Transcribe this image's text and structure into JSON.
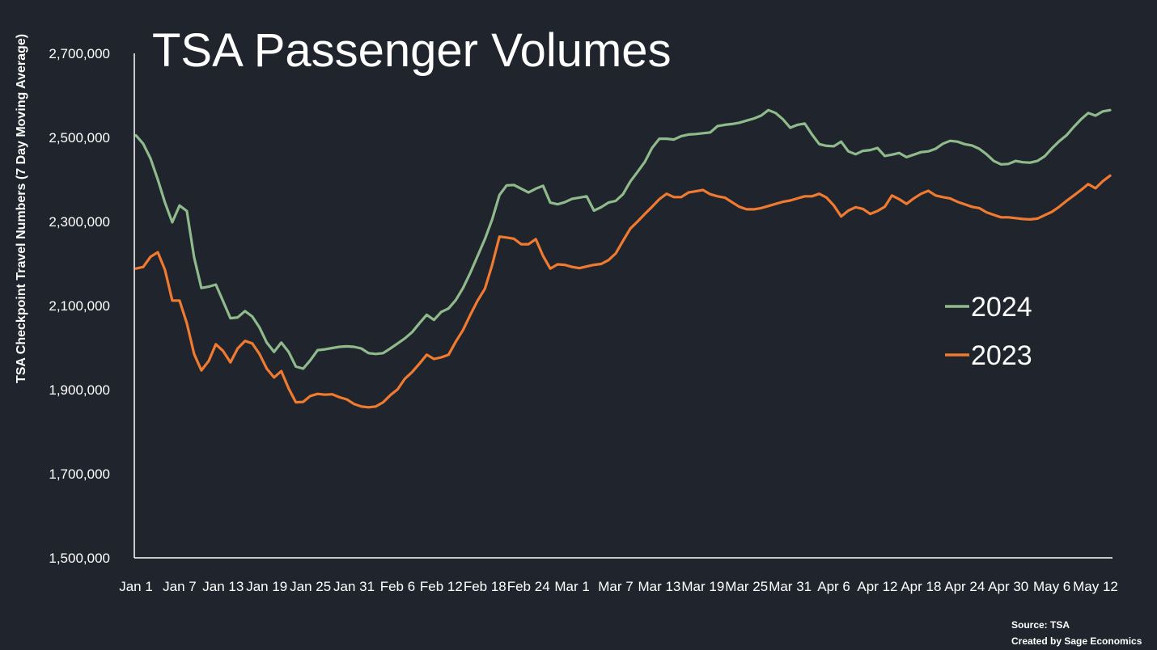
{
  "colors": {
    "background": "#20242c",
    "axis": "#ffffff",
    "text": "#ffffff"
  },
  "chart_data": {
    "type": "line",
    "title": "TSA Passenger Volumes",
    "xlabel": "",
    "ylabel": "TSA Checkpoint Travel Numbers (7 Day Moving Average)",
    "ylim": [
      1500000,
      2700000
    ],
    "yticks": [
      "1,500,000",
      "1,700,000",
      "1,900,000",
      "2,100,000",
      "2,300,000",
      "2,500,000",
      "2,700,000"
    ],
    "xticks": [
      "Jan 1",
      "Jan 7",
      "Jan 13",
      "Jan 19",
      "Jan 25",
      "Jan 31",
      "Feb 6",
      "Feb 12",
      "Feb 18",
      "Feb 24",
      "Mar 1",
      "Mar 7",
      "Mar 13",
      "Mar 19",
      "Mar 25",
      "Mar 31",
      "Apr 6",
      "Apr 12",
      "Apr 18",
      "Apr 24",
      "Apr 30",
      "May 6",
      "May 12"
    ],
    "grid": false,
    "legend_position": "right",
    "series": [
      {
        "name": "2024",
        "color": "#8fba8c",
        "values": [
          2505000,
          2485000,
          2450000,
          2400000,
          2345000,
          2298000,
          2338000,
          2325000,
          2215000,
          2142000,
          2145000,
          2150000,
          2110000,
          2070000,
          2072000,
          2087000,
          2074000,
          2048000,
          2012000,
          1990000,
          2012000,
          1990000,
          1955000,
          1950000,
          1970000,
          1994000,
          1996000,
          1999000,
          2002000,
          2003000,
          2002000,
          1998000,
          1987000,
          1985000,
          1987000,
          1998000,
          2010000,
          2022000,
          2037000,
          2058000,
          2078000,
          2066000,
          2085000,
          2093000,
          2113000,
          2142000,
          2178000,
          2218000,
          2258000,
          2305000,
          2363000,
          2386000,
          2387000,
          2378000,
          2369000,
          2378000,
          2385000,
          2345000,
          2341000,
          2346000,
          2354000,
          2357000,
          2360000,
          2326000,
          2334000,
          2345000,
          2349000,
          2365000,
          2395000,
          2418000,
          2442000,
          2475000,
          2497000,
          2497000,
          2495000,
          2503000,
          2507000,
          2508000,
          2510000,
          2512000,
          2527000,
          2530000,
          2532000,
          2535000,
          2540000,
          2545000,
          2552000,
          2565000,
          2558000,
          2543000,
          2523000,
          2530000,
          2533000,
          2507000,
          2484000,
          2480000,
          2479000,
          2490000,
          2467000,
          2460000,
          2468000,
          2470000,
          2475000,
          2456000,
          2459000,
          2463000,
          2453000,
          2459000,
          2465000,
          2467000,
          2473000,
          2485000,
          2492000,
          2490000,
          2484000,
          2481000,
          2473000,
          2460000,
          2444000,
          2436000,
          2437000,
          2444000,
          2441000,
          2440000,
          2444000,
          2455000,
          2474000,
          2491000,
          2505000,
          2525000,
          2543000,
          2558000,
          2552000,
          2562000,
          2565000
        ]
      },
      {
        "name": "2023",
        "color": "#f07a30",
        "values": [
          2188000,
          2192000,
          2216000,
          2227000,
          2185000,
          2112000,
          2112000,
          2058000,
          1985000,
          1946000,
          1968000,
          2008000,
          1992000,
          1965000,
          1998000,
          2016000,
          2010000,
          1985000,
          1950000,
          1929000,
          1944000,
          1903000,
          1870000,
          1871000,
          1885000,
          1890000,
          1888000,
          1889000,
          1882000,
          1877000,
          1866000,
          1860000,
          1858000,
          1860000,
          1870000,
          1887000,
          1901000,
          1926000,
          1942000,
          1962000,
          1983000,
          1973000,
          1977000,
          1983000,
          2014000,
          2042000,
          2078000,
          2112000,
          2140000,
          2197000,
          2264000,
          2262000,
          2259000,
          2246000,
          2246000,
          2258000,
          2218000,
          2188000,
          2198000,
          2197000,
          2192000,
          2189000,
          2193000,
          2197000,
          2199000,
          2208000,
          2224000,
          2254000,
          2283000,
          2300000,
          2318000,
          2335000,
          2353000,
          2366000,
          2358000,
          2358000,
          2369000,
          2372000,
          2375000,
          2365000,
          2360000,
          2357000,
          2346000,
          2335000,
          2329000,
          2329000,
          2332000,
          2337000,
          2342000,
          2347000,
          2350000,
          2355000,
          2360000,
          2360000,
          2366000,
          2357000,
          2338000,
          2312000,
          2326000,
          2334000,
          2330000,
          2318000,
          2325000,
          2335000,
          2362000,
          2353000,
          2342000,
          2355000,
          2366000,
          2373000,
          2362000,
          2358000,
          2355000,
          2347000,
          2341000,
          2335000,
          2332000,
          2322000,
          2316000,
          2310000,
          2310000,
          2308000,
          2306000,
          2305000,
          2307000,
          2315000,
          2323000,
          2335000,
          2349000,
          2362000,
          2375000,
          2389000,
          2379000,
          2396000,
          2409000
        ]
      }
    ]
  },
  "footer": {
    "source_line": "Source: TSA",
    "credit_line": "Created by Sage Economics"
  }
}
